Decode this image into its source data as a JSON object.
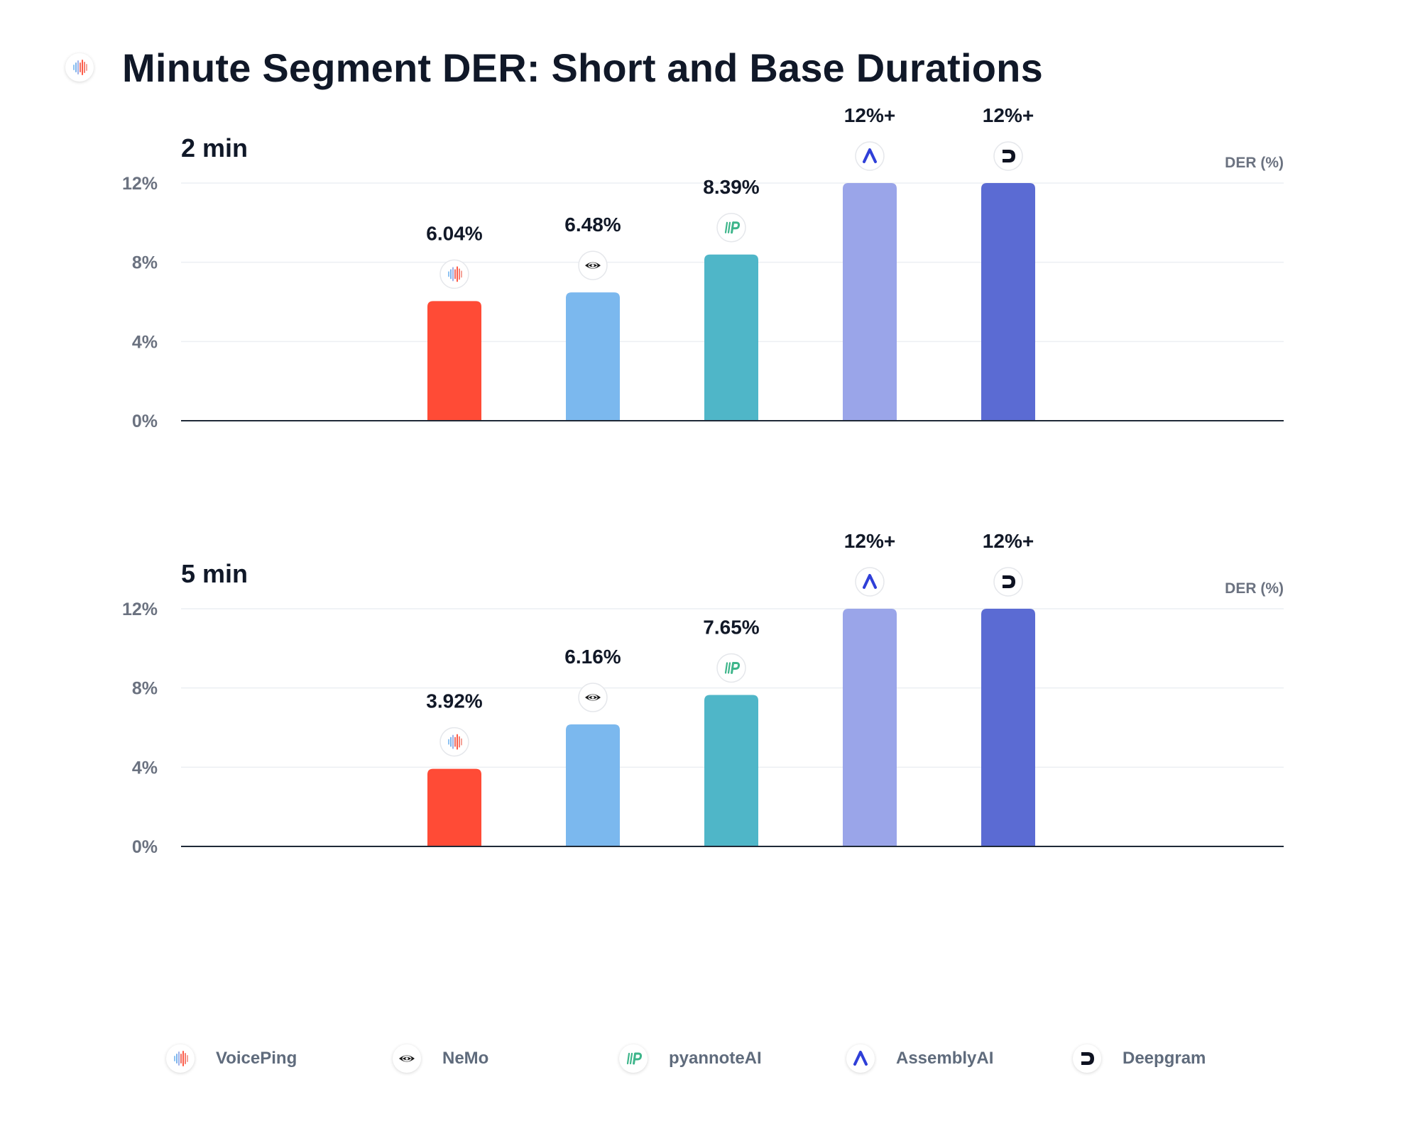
{
  "title": "Minute Segment DER: Short and Base Durations",
  "title_icon": "voiceping-logo-icon",
  "colors": {
    "VoicePing": "#FF4B36",
    "NeMo": "#7BB8EE",
    "pyannoteAI": "#4FB6C8",
    "AssemblyAI": "#9AA5E9",
    "Deepgram": "#5B6BD3",
    "axis": "#1f2937",
    "grid": "#eceff3",
    "tick_text": "#6b7280"
  },
  "legend": [
    {
      "name": "VoicePing",
      "icon": "voiceping-logo-icon"
    },
    {
      "name": "NeMo",
      "icon": "nemo-logo-icon"
    },
    {
      "name": "pyannoteAI",
      "icon": "pyannoteai-logo-icon"
    },
    {
      "name": "AssemblyAI",
      "icon": "assemblyai-logo-icon"
    },
    {
      "name": "Deepgram",
      "icon": "deepgram-logo-icon"
    }
  ],
  "chart_data": [
    {
      "type": "bar",
      "title": "2 min",
      "ylabel": "DER (%)",
      "ylim": [
        0,
        12
      ],
      "yticks": [
        "0%",
        "4%",
        "8%",
        "12%"
      ],
      "ytick_values": [
        0,
        4,
        8,
        12
      ],
      "grid": true,
      "legend_position": "bottom",
      "categories": [
        "VoicePing",
        "NeMo",
        "pyannoteAI",
        "AssemblyAI",
        "Deepgram"
      ],
      "values": [
        6.04,
        6.48,
        8.39,
        12,
        12
      ],
      "clipped": [
        false,
        false,
        false,
        true,
        true
      ],
      "data_labels": [
        "6.04%",
        "6.48%",
        "8.39%",
        "12%+",
        "12%+"
      ]
    },
    {
      "type": "bar",
      "title": "5 min",
      "ylabel": "DER (%)",
      "ylim": [
        0,
        12
      ],
      "yticks": [
        "0%",
        "4%",
        "8%",
        "12%"
      ],
      "ytick_values": [
        0,
        4,
        8,
        12
      ],
      "grid": true,
      "legend_position": "bottom",
      "categories": [
        "VoicePing",
        "NeMo",
        "pyannoteAI",
        "AssemblyAI",
        "Deepgram"
      ],
      "values": [
        3.92,
        6.16,
        7.65,
        12,
        12
      ],
      "clipped": [
        false,
        false,
        false,
        true,
        true
      ],
      "data_labels": [
        "3.92%",
        "6.16%",
        "7.65%",
        "12%+",
        "12%+"
      ]
    }
  ]
}
